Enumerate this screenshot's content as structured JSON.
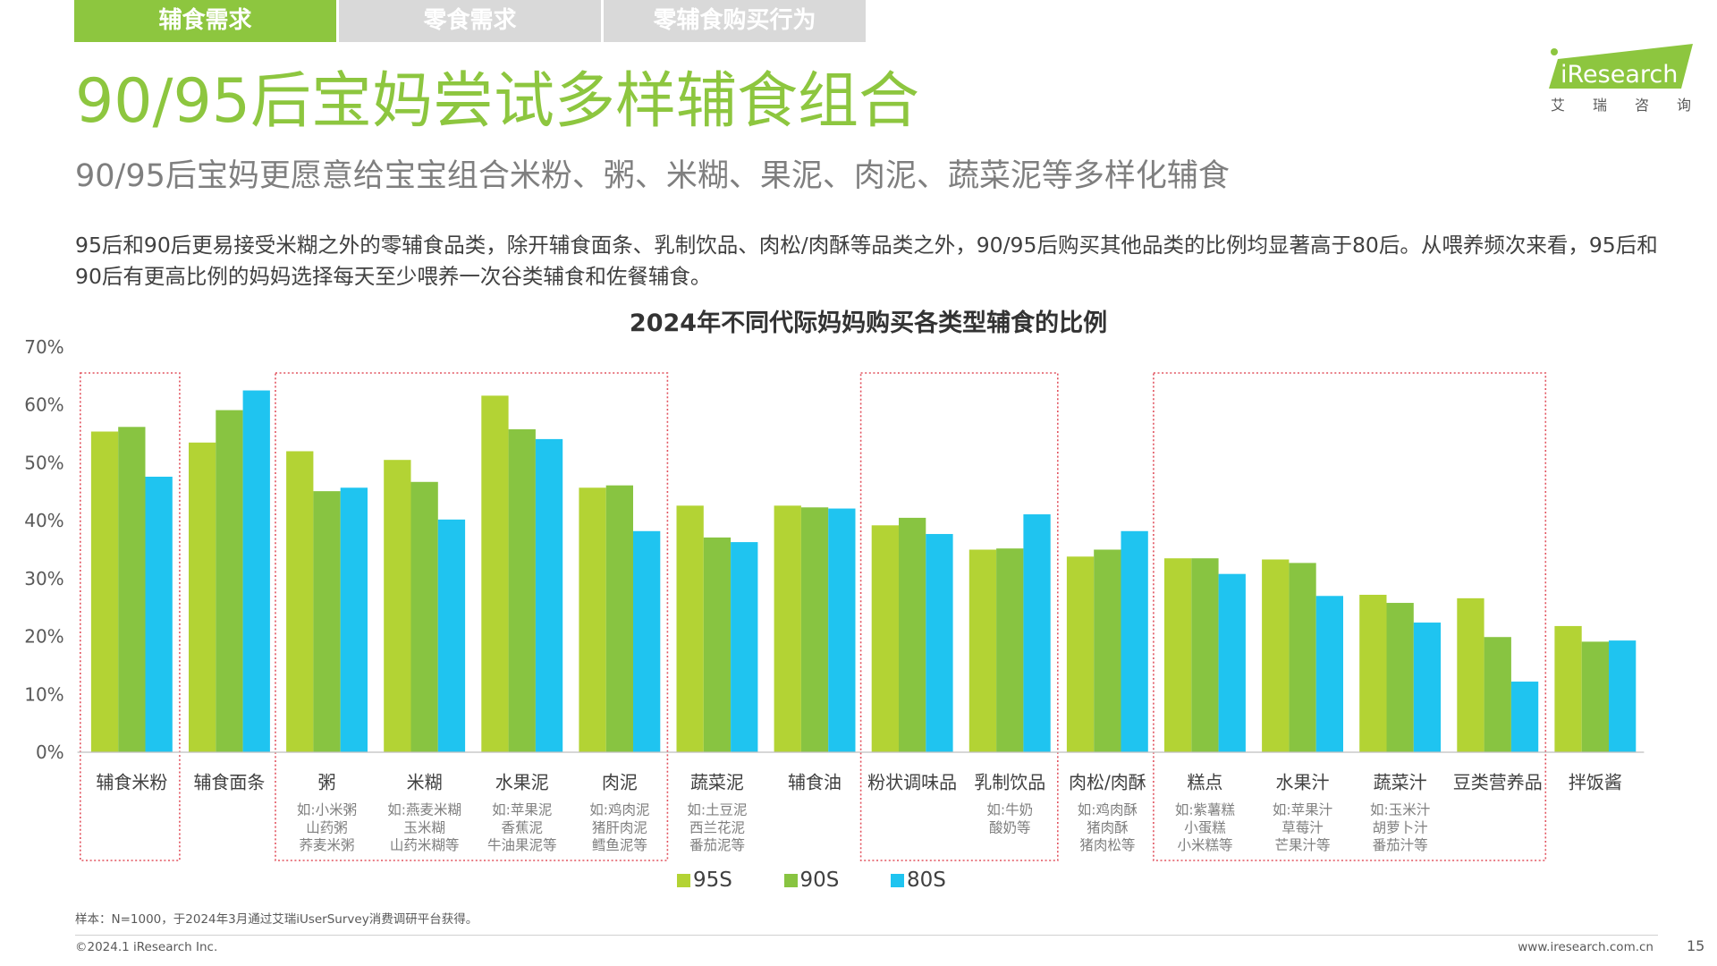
{
  "tabs": [
    {
      "label": "辅食需求",
      "active": true
    },
    {
      "label": "零食需求",
      "active": false
    },
    {
      "label": "零辅食购买行为",
      "active": false
    }
  ],
  "title": "90/95后宝妈尝试多样辅食组合",
  "subtitle": "90/95后宝妈更愿意给宝宝组合米粉、粥、米糊、果泥、肉泥、蔬菜泥等多样化辅食",
  "body_text": "95后和90后更易接受米糊之外的零辅食品类，除开辅食面条、乳制饮品、肉松/肉酥等品类之外，90/95后购买其他品类的比例均显著高于80后。从喂养频次来看，95后和90后有更高比例的妈妈选择每天至少喂养一次谷类辅食和佐餐辅食。",
  "logo": {
    "brand": "iResearch",
    "cn": "艾瑞咨询"
  },
  "colors": {
    "accent": "#8dc63f",
    "tab_inactive": "#d9d9d9",
    "highlight_box": "#e2535f"
  },
  "chart_data": {
    "type": "bar",
    "title": "2024年不同代际妈妈购买各类型辅食的比例",
    "categories": [
      "辅食米粉",
      "辅食面条",
      "粥",
      "米糊",
      "水果泥",
      "肉泥",
      "蔬菜泥",
      "辅食油",
      "粉状调味品",
      "乳制饮品",
      "肉松/肉酥",
      "糕点",
      "水果汁",
      "蔬菜汁",
      "豆类营养品",
      "拌饭酱"
    ],
    "category_examples": [
      [],
      [],
      [
        "如:小米粥",
        "山药粥",
        "荞麦米粥"
      ],
      [
        "如:燕麦米糊",
        "玉米糊",
        "山药米糊等"
      ],
      [
        "如:苹果泥",
        "香蕉泥",
        "牛油果泥等"
      ],
      [
        "如:鸡肉泥",
        "猪肝肉泥",
        "鳕鱼泥等"
      ],
      [
        "如:土豆泥",
        "西兰花泥",
        "番茄泥等"
      ],
      [],
      [],
      [
        "如:牛奶",
        "酸奶等"
      ],
      [
        "如:鸡肉酥",
        "猪肉酥",
        "猪肉松等"
      ],
      [
        "如:紫薯糕",
        "小蛋糕",
        "小米糕等"
      ],
      [
        "如:苹果汁",
        "草莓汁",
        "芒果汁等"
      ],
      [
        "如:玉米汁",
        "胡萝卜汁",
        "番茄汁等"
      ],
      [],
      []
    ],
    "series": [
      {
        "name": "95S",
        "color": "#b3d334",
        "values": [
          55.4,
          53.5,
          52.0,
          50.5,
          61.6,
          45.7,
          42.6,
          42.6,
          39.2,
          35.0,
          33.8,
          33.5,
          33.3,
          27.2,
          26.6,
          21.8
        ]
      },
      {
        "name": "90S",
        "color": "#88c441",
        "values": [
          56.2,
          59.1,
          45.1,
          46.7,
          55.8,
          46.1,
          37.1,
          42.3,
          40.5,
          35.2,
          35.0,
          33.5,
          32.7,
          25.8,
          19.9,
          19.1
        ]
      },
      {
        "name": "80S",
        "color": "#1fc4f0",
        "values": [
          47.6,
          62.5,
          45.7,
          40.2,
          54.1,
          38.2,
          36.3,
          42.1,
          37.7,
          41.1,
          38.2,
          30.8,
          27.0,
          22.4,
          12.2,
          19.3
        ]
      }
    ],
    "y_ticks": [
      0,
      10,
      20,
      30,
      40,
      50,
      60,
      70
    ],
    "y_tick_labels": [
      "0%",
      "10%",
      "20%",
      "30%",
      "40%",
      "50%",
      "60%",
      "70%"
    ],
    "ylim": [
      0,
      70
    ],
    "grid": false,
    "legend": "bottom",
    "highlight_groups": [
      [
        0,
        0
      ],
      [
        2,
        5
      ],
      [
        8,
        9
      ],
      [
        11,
        14
      ]
    ]
  },
  "footer": {
    "note": "样本：N=1000，于2024年3月通过艾瑞iUserSurvey消费调研平台获得。",
    "copyright": "©2024.1 iResearch Inc.",
    "website": "www.iresearch.com.cn",
    "page_number": "15"
  }
}
